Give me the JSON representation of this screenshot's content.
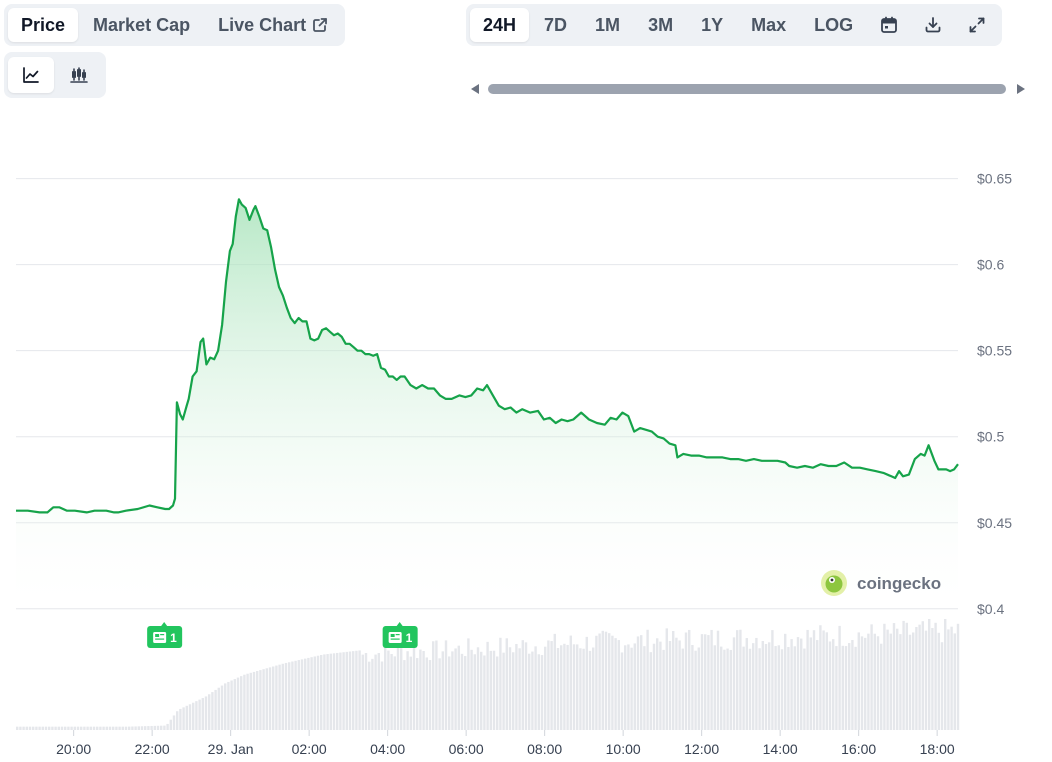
{
  "tabs": {
    "metric": [
      {
        "label": "Price",
        "active": true
      },
      {
        "label": "Market Cap",
        "active": false
      },
      {
        "label": "Live Chart",
        "active": false
      }
    ],
    "chart_type": [
      {
        "icon": "line-chart-icon",
        "active": true
      },
      {
        "icon": "candlestick-chart-icon",
        "active": false
      }
    ],
    "range": [
      {
        "label": "24H",
        "active": true
      },
      {
        "label": "7D",
        "active": false
      },
      {
        "label": "1M",
        "active": false
      },
      {
        "label": "3M",
        "active": false
      },
      {
        "label": "1Y",
        "active": false
      },
      {
        "label": "Max",
        "active": false
      },
      {
        "label": "LOG",
        "active": false
      }
    ],
    "tools": [
      "calendar-icon",
      "download-icon",
      "expand-icon"
    ]
  },
  "watermark": {
    "text": "coingecko"
  },
  "colors": {
    "line": "#16a34a",
    "area_top": "#bfe9cc",
    "volume": "#e5e7eb",
    "flag": "#22c55e",
    "active_tab": "#ffffff"
  },
  "chart_data": {
    "type": "area",
    "title": "",
    "xlabel": "",
    "ylabel": "",
    "ylim": [
      0.39,
      0.655
    ],
    "yticks": [
      "$0.65",
      "$0.6",
      "$0.55",
      "$0.5",
      "$0.45",
      "$0.4"
    ],
    "ytick_values": [
      0.65,
      0.6,
      0.55,
      0.5,
      0.45,
      0.4
    ],
    "xticks": [
      "20:00",
      "22:00",
      "29. Jan",
      "02:00",
      "04:00",
      "06:00",
      "08:00",
      "10:00",
      "12:00",
      "14:00",
      "16:00",
      "18:00"
    ],
    "xtick_hours": [
      20,
      22,
      24,
      26,
      28,
      30,
      32,
      34,
      36,
      38,
      40,
      42
    ],
    "xlim_hours": [
      18.2,
      42.2
    ],
    "grid": true,
    "series": [
      {
        "points": [
          [
            18.2,
            0.457
          ],
          [
            18.5,
            0.457
          ],
          [
            18.8,
            0.456
          ],
          [
            19.0,
            0.456
          ],
          [
            19.15,
            0.459
          ],
          [
            19.3,
            0.459
          ],
          [
            19.5,
            0.457
          ],
          [
            19.7,
            0.457
          ],
          [
            20.0,
            0.456
          ],
          [
            20.2,
            0.457
          ],
          [
            20.5,
            0.457
          ],
          [
            20.7,
            0.456
          ],
          [
            20.8,
            0.456
          ],
          [
            21.0,
            0.457
          ],
          [
            21.3,
            0.458
          ],
          [
            21.6,
            0.46
          ],
          [
            21.8,
            0.459
          ],
          [
            22.0,
            0.458
          ],
          [
            22.1,
            0.458
          ],
          [
            22.2,
            0.46
          ],
          [
            22.25,
            0.464
          ],
          [
            22.3,
            0.52
          ],
          [
            22.38,
            0.513
          ],
          [
            22.45,
            0.51
          ],
          [
            22.55,
            0.518
          ],
          [
            22.6,
            0.522
          ],
          [
            22.7,
            0.535
          ],
          [
            22.8,
            0.538
          ],
          [
            22.9,
            0.555
          ],
          [
            22.97,
            0.557
          ],
          [
            23.05,
            0.542
          ],
          [
            23.15,
            0.546
          ],
          [
            23.25,
            0.545
          ],
          [
            23.35,
            0.55
          ],
          [
            23.45,
            0.565
          ],
          [
            23.55,
            0.59
          ],
          [
            23.65,
            0.608
          ],
          [
            23.72,
            0.612
          ],
          [
            23.8,
            0.628
          ],
          [
            23.88,
            0.638
          ],
          [
            23.95,
            0.635
          ],
          [
            24.05,
            0.633
          ],
          [
            24.15,
            0.626
          ],
          [
            24.25,
            0.632
          ],
          [
            24.3,
            0.634
          ],
          [
            24.4,
            0.628
          ],
          [
            24.5,
            0.621
          ],
          [
            24.6,
            0.62
          ],
          [
            24.7,
            0.61
          ],
          [
            24.8,
            0.597
          ],
          [
            24.9,
            0.587
          ],
          [
            25.0,
            0.582
          ],
          [
            25.1,
            0.575
          ],
          [
            25.2,
            0.569
          ],
          [
            25.3,
            0.566
          ],
          [
            25.4,
            0.569
          ],
          [
            25.5,
            0.567
          ],
          [
            25.6,
            0.567
          ],
          [
            25.7,
            0.557
          ],
          [
            25.8,
            0.556
          ],
          [
            25.9,
            0.557
          ],
          [
            26.0,
            0.562
          ],
          [
            26.1,
            0.563
          ],
          [
            26.2,
            0.561
          ],
          [
            26.3,
            0.559
          ],
          [
            26.4,
            0.56
          ],
          [
            26.5,
            0.558
          ],
          [
            26.6,
            0.554
          ],
          [
            26.7,
            0.554
          ],
          [
            26.8,
            0.552
          ],
          [
            26.9,
            0.55
          ],
          [
            27.0,
            0.55
          ],
          [
            27.1,
            0.548
          ],
          [
            27.2,
            0.548
          ],
          [
            27.3,
            0.547
          ],
          [
            27.4,
            0.548
          ],
          [
            27.5,
            0.54
          ],
          [
            27.6,
            0.539
          ],
          [
            27.7,
            0.535
          ],
          [
            27.8,
            0.535
          ],
          [
            27.9,
            0.533
          ],
          [
            28.0,
            0.535
          ],
          [
            28.1,
            0.535
          ],
          [
            28.25,
            0.53
          ],
          [
            28.4,
            0.528
          ],
          [
            28.55,
            0.53
          ],
          [
            28.7,
            0.528
          ],
          [
            28.85,
            0.528
          ],
          [
            29.0,
            0.524
          ],
          [
            29.15,
            0.522
          ],
          [
            29.3,
            0.522
          ],
          [
            29.5,
            0.524
          ],
          [
            29.65,
            0.523
          ],
          [
            29.8,
            0.524
          ],
          [
            29.95,
            0.528
          ],
          [
            30.1,
            0.527
          ],
          [
            30.2,
            0.53
          ],
          [
            30.35,
            0.524
          ],
          [
            30.5,
            0.518
          ],
          [
            30.65,
            0.516
          ],
          [
            30.8,
            0.517
          ],
          [
            30.95,
            0.514
          ],
          [
            31.1,
            0.516
          ],
          [
            31.3,
            0.514
          ],
          [
            31.5,
            0.515
          ],
          [
            31.65,
            0.51
          ],
          [
            31.8,
            0.511
          ],
          [
            31.95,
            0.508
          ],
          [
            32.1,
            0.51
          ],
          [
            32.25,
            0.509
          ],
          [
            32.4,
            0.51
          ],
          [
            32.6,
            0.514
          ],
          [
            32.8,
            0.51
          ],
          [
            33.0,
            0.508
          ],
          [
            33.2,
            0.507
          ],
          [
            33.35,
            0.511
          ],
          [
            33.5,
            0.51
          ],
          [
            33.65,
            0.514
          ],
          [
            33.8,
            0.512
          ],
          [
            33.95,
            0.503
          ],
          [
            34.1,
            0.505
          ],
          [
            34.25,
            0.504
          ],
          [
            34.4,
            0.503
          ],
          [
            34.55,
            0.5
          ],
          [
            34.7,
            0.499
          ],
          [
            34.85,
            0.496
          ],
          [
            35.0,
            0.495
          ],
          [
            35.05,
            0.488
          ],
          [
            35.2,
            0.49
          ],
          [
            35.4,
            0.489
          ],
          [
            35.6,
            0.489
          ],
          [
            35.8,
            0.488
          ],
          [
            36.0,
            0.488
          ],
          [
            36.2,
            0.488
          ],
          [
            36.4,
            0.487
          ],
          [
            36.6,
            0.487
          ],
          [
            36.8,
            0.486
          ],
          [
            37.0,
            0.487
          ],
          [
            37.2,
            0.486
          ],
          [
            37.4,
            0.486
          ],
          [
            37.6,
            0.486
          ],
          [
            37.8,
            0.485
          ],
          [
            37.9,
            0.483
          ],
          [
            38.1,
            0.482
          ],
          [
            38.3,
            0.483
          ],
          [
            38.5,
            0.482
          ],
          [
            38.7,
            0.484
          ],
          [
            38.9,
            0.483
          ],
          [
            39.1,
            0.483
          ],
          [
            39.3,
            0.485
          ],
          [
            39.5,
            0.482
          ],
          [
            39.7,
            0.482
          ],
          [
            39.9,
            0.481
          ],
          [
            40.1,
            0.48
          ],
          [
            40.3,
            0.479
          ],
          [
            40.5,
            0.477
          ],
          [
            40.6,
            0.476
          ],
          [
            40.7,
            0.48
          ],
          [
            40.8,
            0.477
          ],
          [
            40.95,
            0.478
          ],
          [
            41.1,
            0.487
          ],
          [
            41.25,
            0.49
          ],
          [
            41.35,
            0.489
          ],
          [
            41.45,
            0.495
          ],
          [
            41.6,
            0.486
          ],
          [
            41.7,
            0.481
          ],
          [
            41.9,
            0.481
          ],
          [
            42.0,
            0.48
          ],
          [
            42.1,
            0.481
          ],
          [
            42.2,
            0.484
          ]
        ]
      }
    ],
    "volume": {
      "ylim": [
        0,
        1.0
      ],
      "points": [
        [
          18.2,
          0.03
        ],
        [
          19.0,
          0.03
        ],
        [
          20.0,
          0.03
        ],
        [
          21.0,
          0.03
        ],
        [
          22.0,
          0.04
        ],
        [
          22.3,
          0.18
        ],
        [
          23.0,
          0.3
        ],
        [
          23.5,
          0.42
        ],
        [
          24.0,
          0.5
        ],
        [
          24.5,
          0.55
        ],
        [
          25.0,
          0.6
        ],
        [
          25.5,
          0.64
        ],
        [
          26.0,
          0.68
        ],
        [
          27.0,
          0.72
        ],
        [
          28.0,
          0.75
        ],
        [
          29.0,
          0.76
        ],
        [
          30.0,
          0.78
        ],
        [
          31.0,
          0.8
        ],
        [
          32.0,
          0.82
        ],
        [
          33.0,
          0.84
        ],
        [
          34.0,
          0.85
        ],
        [
          35.0,
          0.86
        ],
        [
          36.0,
          0.87
        ],
        [
          37.0,
          0.88
        ],
        [
          38.0,
          0.89
        ],
        [
          39.0,
          0.9
        ],
        [
          40.0,
          0.91
        ],
        [
          41.0,
          0.93
        ],
        [
          42.2,
          0.95
        ]
      ]
    },
    "flags": [
      {
        "hour": 22.0,
        "label": "1"
      },
      {
        "hour": 28.0,
        "label": "1"
      }
    ]
  }
}
